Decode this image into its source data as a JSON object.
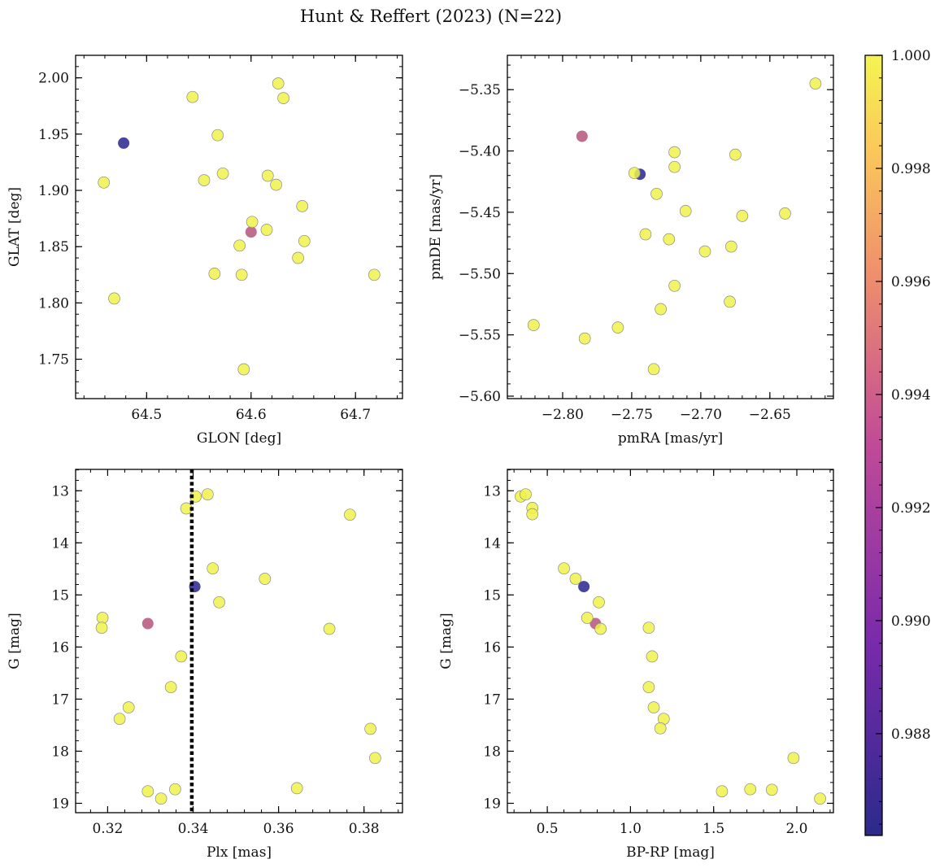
{
  "figure_title": "Hunt & Reffert (2023) (N=22)",
  "colors": {
    "low": "#3b3a9a",
    "mid": "#cc6a87",
    "high": "#f0f24b",
    "edge": "#8a8a8a",
    "vline": "#000000"
  },
  "colorbar": {
    "range": [
      0.9862,
      1.0
    ],
    "ticks": [
      0.988,
      0.99,
      0.992,
      0.994,
      0.996,
      0.998,
      1.0
    ],
    "tick_labels": [
      "0.988",
      "0.990",
      "0.992",
      "0.994",
      "0.996",
      "0.998",
      "1.000"
    ]
  },
  "chart_data": [
    {
      "type": "scatter",
      "title": "",
      "xlabel": "GLON [deg]",
      "ylabel": "GLAT [deg]",
      "xlim": [
        64.432,
        64.745
      ],
      "ylim": [
        1.715,
        2.02
      ],
      "y_inverted": false,
      "xticks": [
        64.5,
        64.6,
        64.7
      ],
      "xtick_labels": [
        "64.5",
        "64.6",
        "64.7"
      ],
      "yticks": [
        1.75,
        1.8,
        1.85,
        1.9,
        1.95,
        2.0
      ],
      "ytick_labels": [
        "1.75",
        "1.80",
        "1.85",
        "1.90",
        "1.95",
        "2.00"
      ],
      "x": [
        64.478,
        64.6,
        64.626,
        64.631,
        64.544,
        64.568,
        64.459,
        64.555,
        64.573,
        64.616,
        64.624,
        64.649,
        64.601,
        64.615,
        64.589,
        64.651,
        64.645,
        64.565,
        64.591,
        64.718,
        64.469,
        64.593
      ],
      "y": [
        1.942,
        1.863,
        1.995,
        1.982,
        1.983,
        1.949,
        1.907,
        1.909,
        1.915,
        1.913,
        1.905,
        1.886,
        1.872,
        1.865,
        1.851,
        1.855,
        1.84,
        1.826,
        1.825,
        1.825,
        1.804,
        1.741
      ],
      "c": [
        0.9863,
        0.993,
        1,
        1,
        1,
        1,
        1,
        1,
        1,
        1,
        1,
        1,
        1,
        1,
        1,
        1,
        1,
        1,
        1,
        1,
        1,
        1
      ]
    },
    {
      "type": "scatter",
      "title": "",
      "xlabel": "pmRA [mas/yr]",
      "ylabel": "pmDE [mas/yr]",
      "xlim": [
        -2.84,
        -2.604
      ],
      "ylim": [
        -5.602,
        -5.322
      ],
      "y_inverted": false,
      "xticks": [
        -2.8,
        -2.75,
        -2.7,
        -2.65,
        -2.6
      ],
      "xtick_labels": [
        "−2.80",
        "−2.75",
        "−2.70",
        "−2.65",
        "−2.60"
      ],
      "yticks": [
        -5.6,
        -5.55,
        -5.5,
        -5.45,
        -5.4,
        -5.35
      ],
      "ytick_labels": [
        "−5.60",
        "−5.55",
        "−5.50",
        "−5.45",
        "−5.40",
        "−5.35"
      ],
      "x": [
        -2.744,
        -2.786,
        -2.617,
        -2.719,
        -2.675,
        -2.719,
        -2.748,
        -2.732,
        -2.711,
        -2.67,
        -2.639,
        -2.74,
        -2.723,
        -2.678,
        -2.697,
        -2.719,
        -2.729,
        -2.679,
        -2.821,
        -2.784,
        -2.76,
        -2.734
      ],
      "y": [
        -5.419,
        -5.388,
        -5.345,
        -5.401,
        -5.403,
        -5.413,
        -5.418,
        -5.435,
        -5.449,
        -5.453,
        -5.451,
        -5.468,
        -5.472,
        -5.478,
        -5.482,
        -5.51,
        -5.529,
        -5.523,
        -5.542,
        -5.553,
        -5.544,
        -5.578
      ],
      "c": [
        0.9863,
        0.993,
        1,
        1,
        1,
        1,
        1,
        1,
        1,
        1,
        1,
        1,
        1,
        1,
        1,
        1,
        1,
        1,
        1,
        1,
        1,
        1
      ]
    },
    {
      "type": "scatter",
      "title": "",
      "xlabel": "Plx [mas]",
      "ylabel": "G [mag]",
      "xlim": [
        0.3125,
        0.389
      ],
      "ylim": [
        19.18,
        12.59
      ],
      "y_inverted": true,
      "xticks": [
        0.32,
        0.34,
        0.36,
        0.38
      ],
      "xtick_labels": [
        "0.32",
        "0.34",
        "0.36",
        "0.38"
      ],
      "yticks": [
        13,
        14,
        15,
        16,
        17,
        18,
        19
      ],
      "ytick_labels": [
        "13",
        "14",
        "15",
        "16",
        "17",
        "18",
        "19"
      ],
      "vline_x": 0.3397,
      "x": [
        0.3404,
        0.3294,
        0.3434,
        0.3406,
        0.3384,
        0.3767,
        0.3446,
        0.3568,
        0.3461,
        0.3188,
        0.3186,
        0.3719,
        0.3372,
        0.3348,
        0.3249,
        0.3228,
        0.3815,
        0.3826,
        0.3643,
        0.3294,
        0.3325,
        0.3358
      ],
      "y": [
        14.84,
        15.55,
        13.07,
        13.11,
        13.34,
        13.46,
        14.49,
        14.69,
        15.14,
        15.44,
        15.63,
        15.65,
        16.18,
        16.77,
        17.16,
        17.38,
        17.57,
        18.13,
        18.71,
        18.77,
        18.91,
        18.73
      ],
      "c": [
        0.9863,
        0.993,
        1,
        1,
        1,
        1,
        1,
        1,
        1,
        1,
        1,
        1,
        1,
        1,
        1,
        1,
        1,
        1,
        1,
        1,
        1,
        1
      ]
    },
    {
      "type": "scatter",
      "title": "",
      "xlabel": "BP-RP [mag]",
      "ylabel": "G [mag]",
      "xlim": [
        0.26,
        2.22
      ],
      "ylim": [
        19.18,
        12.59
      ],
      "y_inverted": true,
      "xticks": [
        0.5,
        1.0,
        1.5,
        2.0
      ],
      "xtick_labels": [
        "0.5",
        "1.0",
        "1.5",
        "2.0"
      ],
      "yticks": [
        13,
        14,
        15,
        16,
        17,
        18,
        19
      ],
      "ytick_labels": [
        "13",
        "14",
        "15",
        "16",
        "17",
        "18",
        "19"
      ],
      "x": [
        0.72,
        0.79,
        0.34,
        0.37,
        0.41,
        0.41,
        0.6,
        0.67,
        0.81,
        0.74,
        0.82,
        1.11,
        1.13,
        1.11,
        1.14,
        1.2,
        1.18,
        1.98,
        1.55,
        1.72,
        1.85,
        2.14
      ],
      "y": [
        14.84,
        15.55,
        13.11,
        13.07,
        13.33,
        13.45,
        14.49,
        14.69,
        15.14,
        15.44,
        15.65,
        15.63,
        16.18,
        16.77,
        17.16,
        17.38,
        17.56,
        18.13,
        18.77,
        18.73,
        18.74,
        18.91
      ],
      "c": [
        0.9863,
        0.993,
        1,
        1,
        1,
        1,
        1,
        1,
        1,
        1,
        1,
        1,
        1,
        1,
        1,
        1,
        1,
        1,
        1,
        1,
        1,
        1
      ]
    }
  ]
}
